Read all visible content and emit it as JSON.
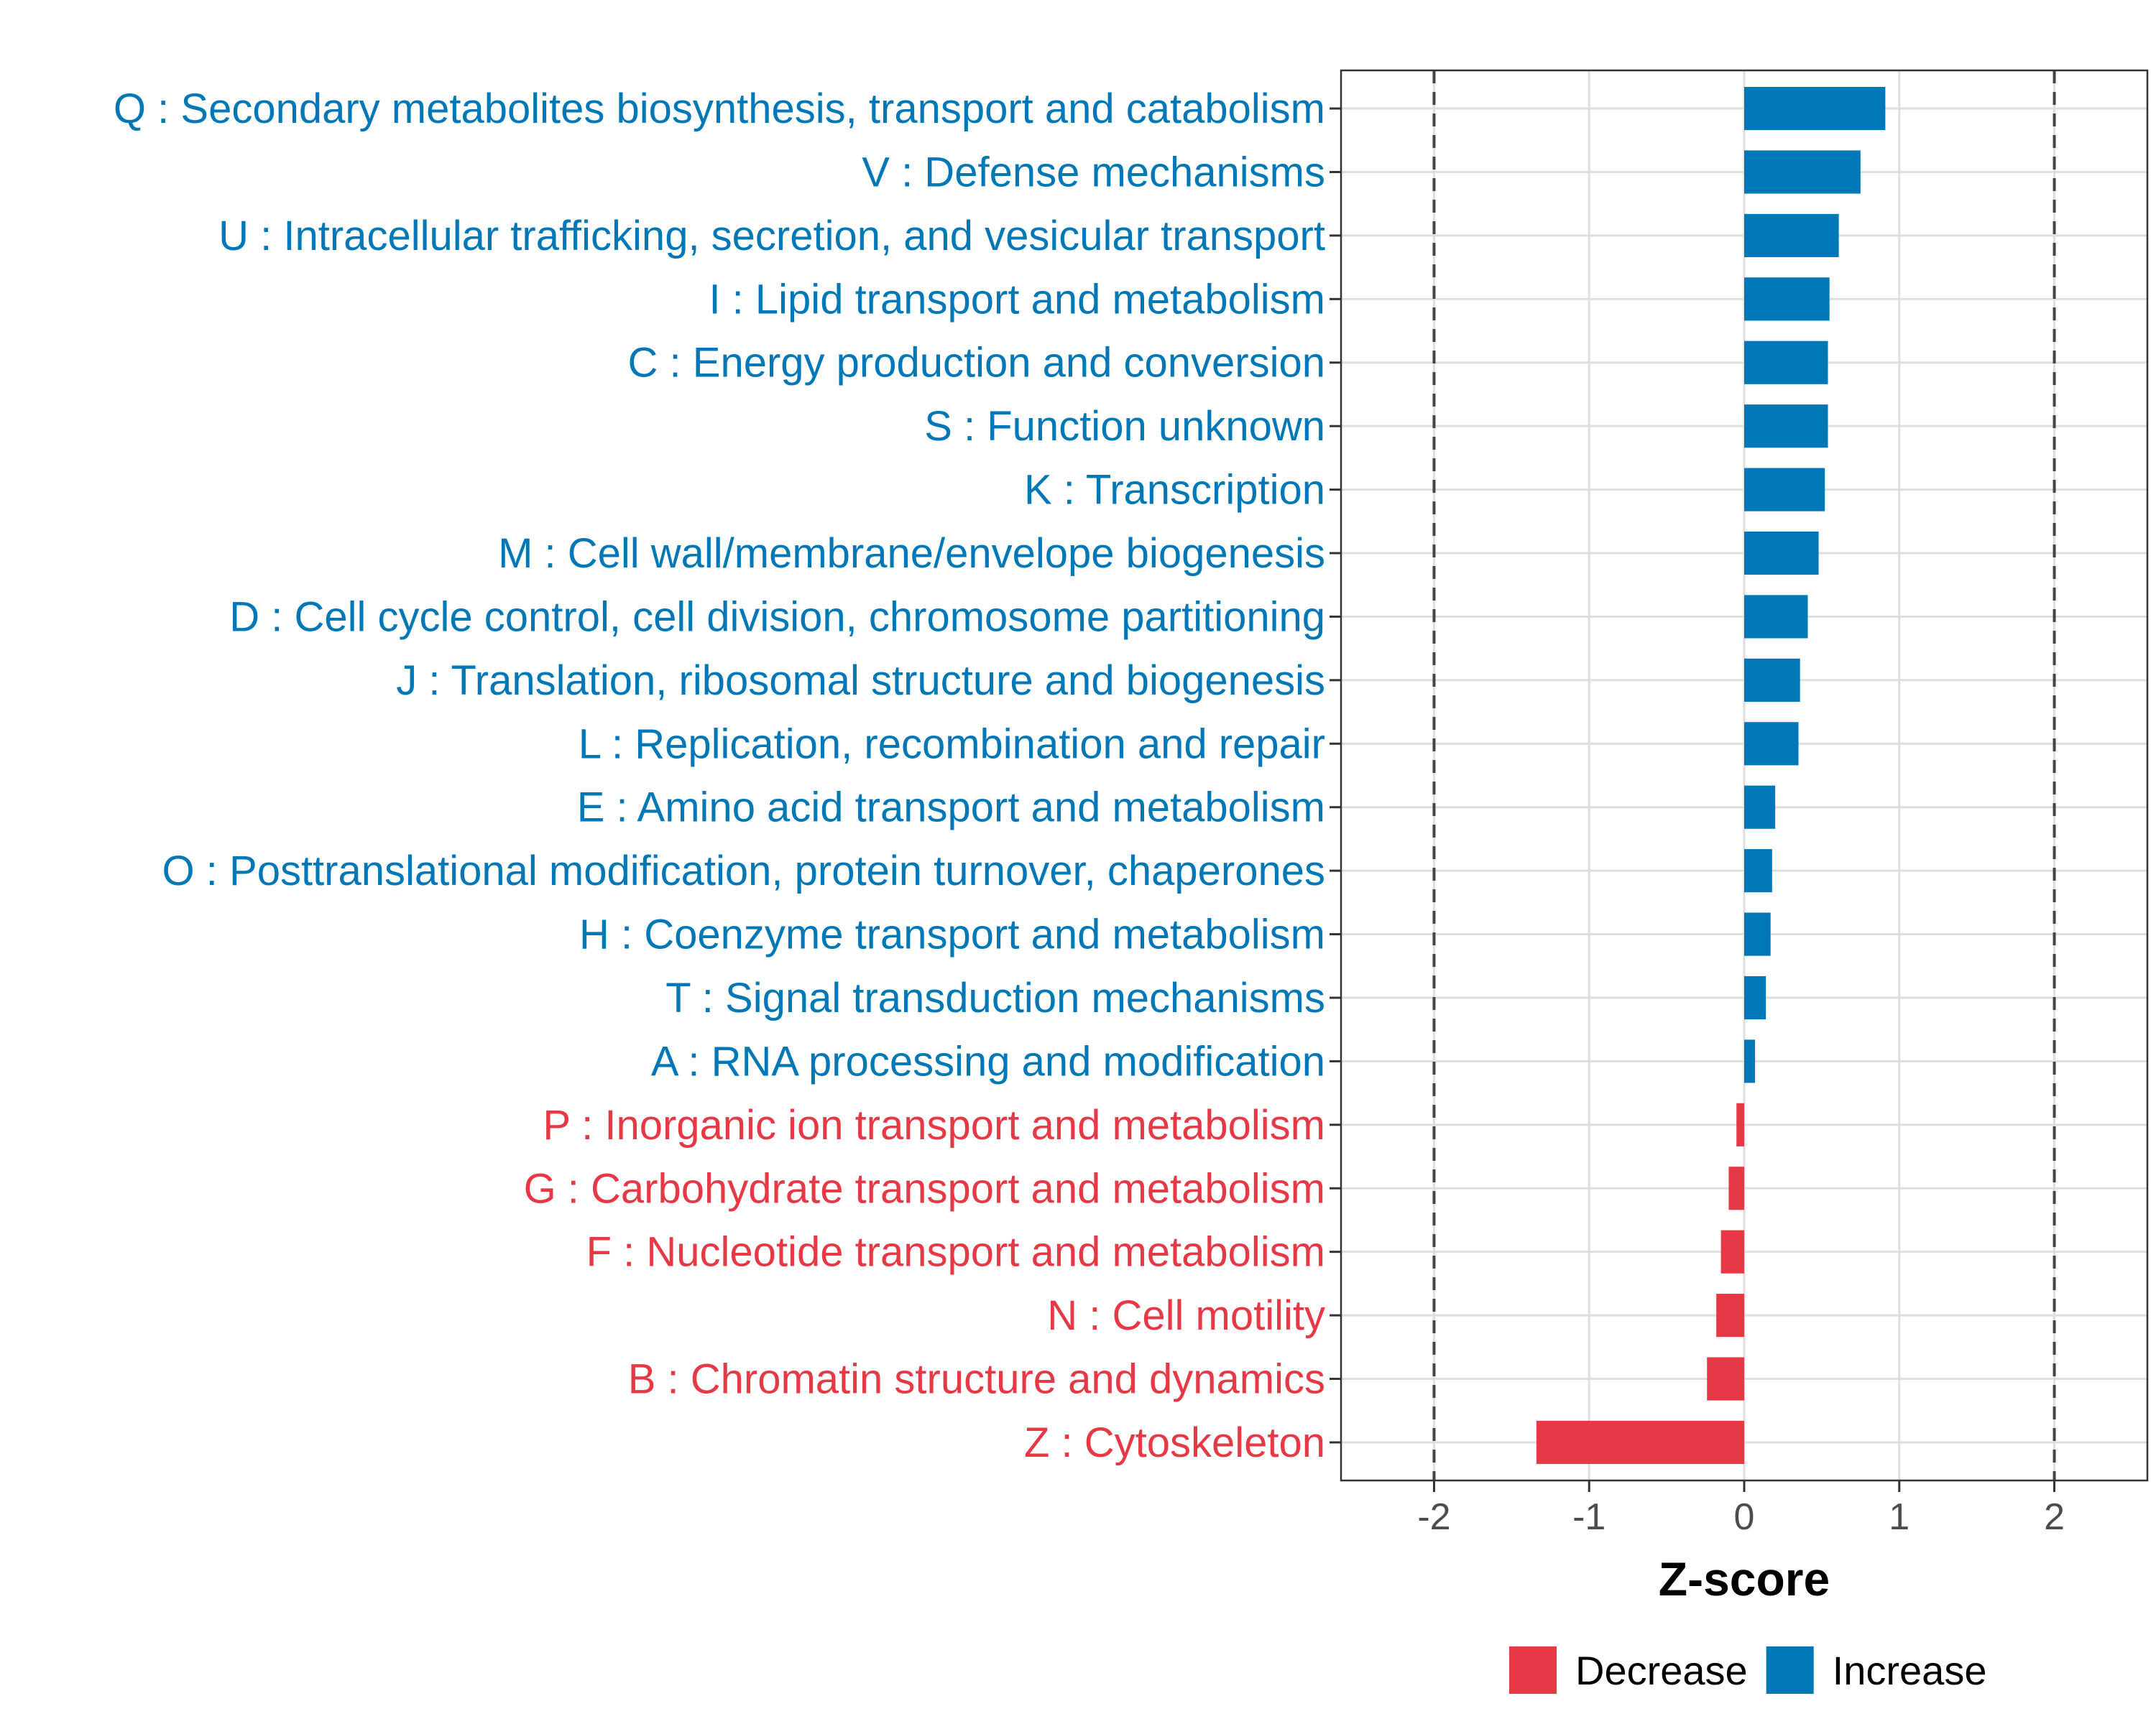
{
  "chart_data": {
    "type": "bar",
    "orientation": "horizontal",
    "xlabel": "Z-score",
    "xlim": [
      -2.6,
      2.6
    ],
    "xticks": [
      -2,
      -1,
      0,
      1,
      2
    ],
    "xtick_labels": [
      "-2",
      "-1",
      "0",
      "1",
      "2"
    ],
    "reference_lines": [
      -2,
      2
    ],
    "grid": true,
    "legend_position": "bottom",
    "colors": {
      "Decrease": "#e63946",
      "Increase": "#0077b6"
    },
    "legend": [
      {
        "name": "Decrease",
        "color": "#e63946"
      },
      {
        "name": "Increase",
        "color": "#0077b6"
      }
    ],
    "categories": [
      "Q : Secondary metabolites biosynthesis, transport and catabolism",
      "V : Defense mechanisms",
      "U : Intracellular trafficking, secretion, and vesicular transport",
      "I : Lipid transport and metabolism",
      "C : Energy production and conversion",
      "S : Function unknown",
      "K : Transcription",
      "M : Cell wall/membrane/envelope biogenesis",
      "D : Cell cycle control, cell division, chromosome partitioning",
      "J : Translation, ribosomal structure and biogenesis",
      "L : Replication, recombination and repair",
      "E : Amino acid transport and metabolism",
      "O : Posttranslational modification, protein turnover, chaperones",
      "H : Coenzyme transport and metabolism",
      "T : Signal transduction mechanisms",
      "A : RNA processing and modification",
      "P : Inorganic ion transport and metabolism",
      "G : Carbohydrate transport and metabolism",
      "F : Nucleotide transport and metabolism",
      "N : Cell motility",
      "B : Chromatin structure and dynamics",
      "Z : Cytoskeleton"
    ],
    "values": [
      0.91,
      0.75,
      0.61,
      0.55,
      0.54,
      0.54,
      0.52,
      0.48,
      0.41,
      0.36,
      0.35,
      0.2,
      0.18,
      0.17,
      0.14,
      0.07,
      -0.05,
      -0.1,
      -0.15,
      -0.18,
      -0.24,
      -1.34
    ],
    "groups": [
      "Increase",
      "Increase",
      "Increase",
      "Increase",
      "Increase",
      "Increase",
      "Increase",
      "Increase",
      "Increase",
      "Increase",
      "Increase",
      "Increase",
      "Increase",
      "Increase",
      "Increase",
      "Increase",
      "Decrease",
      "Decrease",
      "Decrease",
      "Decrease",
      "Decrease",
      "Decrease"
    ]
  }
}
